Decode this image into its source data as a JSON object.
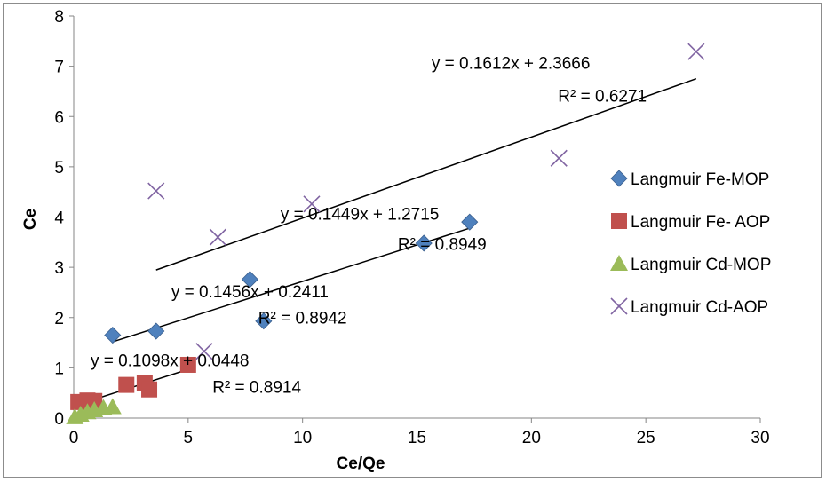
{
  "chart_data": {
    "type": "scatter",
    "title": "",
    "xlabel": "Ce/Qe",
    "ylabel": "Ce",
    "xlim": [
      0,
      30
    ],
    "ylim": [
      0,
      8
    ],
    "xticks": [
      0,
      5,
      10,
      15,
      20,
      25,
      30
    ],
    "yticks": [
      0,
      1,
      2,
      3,
      4,
      5,
      6,
      7,
      8
    ],
    "grid": false,
    "legend_position": "right",
    "series": [
      {
        "name": "Langmuir  Fe-MOP",
        "marker": "diamond",
        "color": "#4f81bd",
        "points": [
          [
            1.7,
            1.65
          ],
          [
            3.6,
            1.73
          ],
          [
            7.7,
            2.76
          ],
          [
            8.3,
            1.93
          ],
          [
            15.3,
            3.48
          ],
          [
            17.3,
            3.9
          ]
        ],
        "trendline": {
          "x": [
            1.7,
            17.3
          ],
          "equation": "y = 0.1449x + 1.2715",
          "r2": "R² = 0.8949"
        }
      },
      {
        "name": "Langmuir  Fe- AOP",
        "marker": "square",
        "color": "#c0504d",
        "points": [
          [
            0.2,
            0.32
          ],
          [
            0.6,
            0.35
          ],
          [
            0.9,
            0.34
          ],
          [
            2.3,
            0.66
          ],
          [
            3.1,
            0.7
          ],
          [
            3.3,
            0.57
          ],
          [
            5.0,
            1.06
          ]
        ],
        "trendline": {
          "x": [
            0.2,
            5.0
          ],
          "equation": "y = 0.1456x + 0.2411",
          "r2": "R² = 0.8942"
        }
      },
      {
        "name": "Langmuir  Cd-MOP",
        "marker": "triangle",
        "color": "#9bbb59",
        "points": [
          [
            0.05,
            0.02
          ],
          [
            0.3,
            0.07
          ],
          [
            0.6,
            0.12
          ],
          [
            0.9,
            0.16
          ],
          [
            1.3,
            0.2
          ],
          [
            1.7,
            0.22
          ]
        ],
        "trendline": {
          "x": [
            0.05,
            1.7
          ],
          "equation": "y = 0.1098x + 0.0448",
          "r2": "R² = 0.8914"
        }
      },
      {
        "name": "Langmuir  Cd-AOP",
        "marker": "x",
        "color": "#8064a2",
        "points": [
          [
            3.6,
            4.52
          ],
          [
            5.7,
            1.33
          ],
          [
            6.3,
            3.6
          ],
          [
            10.4,
            4.26
          ],
          [
            21.2,
            5.17
          ],
          [
            27.2,
            7.29
          ]
        ],
        "trendline": {
          "x": [
            3.6,
            27.2
          ],
          "equation": "y = 0.1612x + 2.3666",
          "r2": "R² = 0.6271"
        }
      }
    ]
  }
}
